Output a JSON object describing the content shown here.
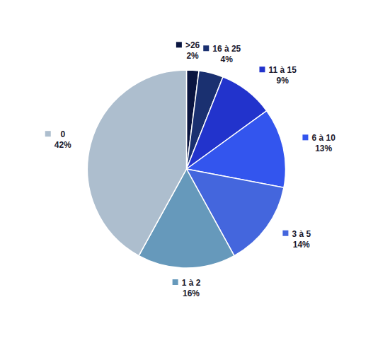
{
  "chart_data": {
    "type": "pie",
    "categories": [
      ">26",
      "16 à 25",
      "11 à 15",
      "6 à 10",
      "3 à 5",
      "1 à 2",
      "0"
    ],
    "values": [
      2,
      4,
      9,
      13,
      14,
      16,
      42
    ],
    "value_labels": [
      "2%",
      "4%",
      "9%",
      "13%",
      "14%",
      "16%",
      "42%"
    ],
    "colors": [
      "#0a1540",
      "#1a3070",
      "#2233cc",
      "#3355ee",
      "#4466dd",
      "#6699bb",
      "#adbece"
    ],
    "data_labels": true
  }
}
